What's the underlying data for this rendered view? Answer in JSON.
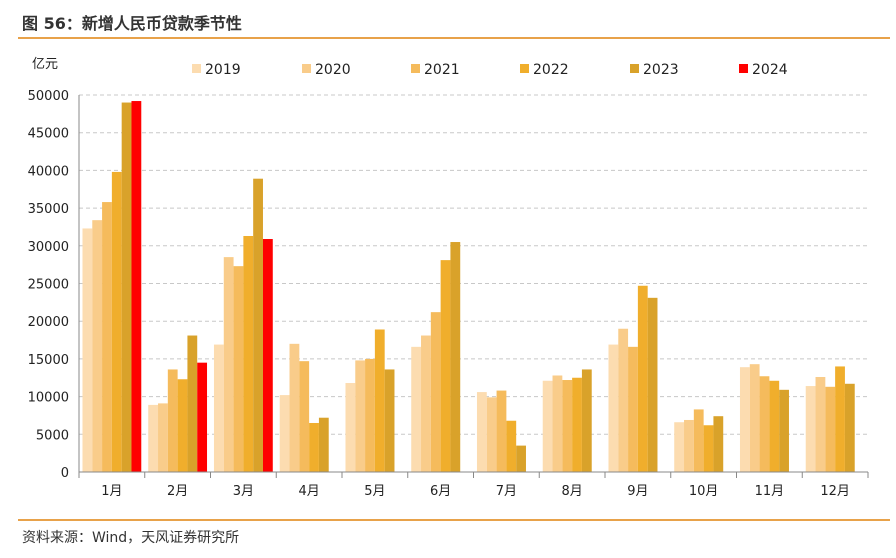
{
  "header": {
    "title": "图 56：新增人民币贷款季节性"
  },
  "footer": {
    "source": "资料来源：Wind，天风证券研究所"
  },
  "chart_data": {
    "type": "bar",
    "title": "图 56：新增人民币贷款季节性",
    "ylabel": "亿元",
    "xlabel": "",
    "ylim": [
      0,
      50000
    ],
    "yticks": [
      0,
      5000,
      10000,
      15000,
      20000,
      25000,
      30000,
      35000,
      40000,
      45000,
      50000
    ],
    "grid": "horizontal dashed",
    "legend_position": "top",
    "categories": [
      "1月",
      "2月",
      "3月",
      "4月",
      "5月",
      "6月",
      "7月",
      "8月",
      "9月",
      "10月",
      "11月",
      "12月"
    ],
    "series": [
      {
        "name": "2019",
        "color": "#fcdcb0",
        "values": [
          32300,
          8900,
          16900,
          10200,
          11800,
          16600,
          10600,
          12100,
          16900,
          6600,
          13900,
          11400
        ]
      },
      {
        "name": "2020",
        "color": "#f9cc8a",
        "values": [
          33400,
          9100,
          28500,
          17000,
          14800,
          18100,
          9900,
          12800,
          19000,
          6900,
          14300,
          12600
        ]
      },
      {
        "name": "2021",
        "color": "#f5bb5c",
        "values": [
          35800,
          13600,
          27300,
          14700,
          15000,
          21200,
          10800,
          12200,
          16600,
          8300,
          12700,
          11300
        ]
      },
      {
        "name": "2022",
        "color": "#f0ae2c",
        "values": [
          39800,
          12300,
          31300,
          6500,
          18900,
          28100,
          6800,
          12500,
          24700,
          6200,
          12100,
          14000
        ]
      },
      {
        "name": "2023",
        "color": "#d9a22a",
        "values": [
          49000,
          18100,
          38900,
          7200,
          13600,
          30500,
          3500,
          13600,
          23100,
          7400,
          10900,
          11700
        ]
      },
      {
        "name": "2024",
        "color": "#ff0000",
        "values": [
          49200,
          14500,
          30900,
          null,
          null,
          null,
          null,
          null,
          null,
          null,
          null,
          null
        ]
      }
    ]
  }
}
